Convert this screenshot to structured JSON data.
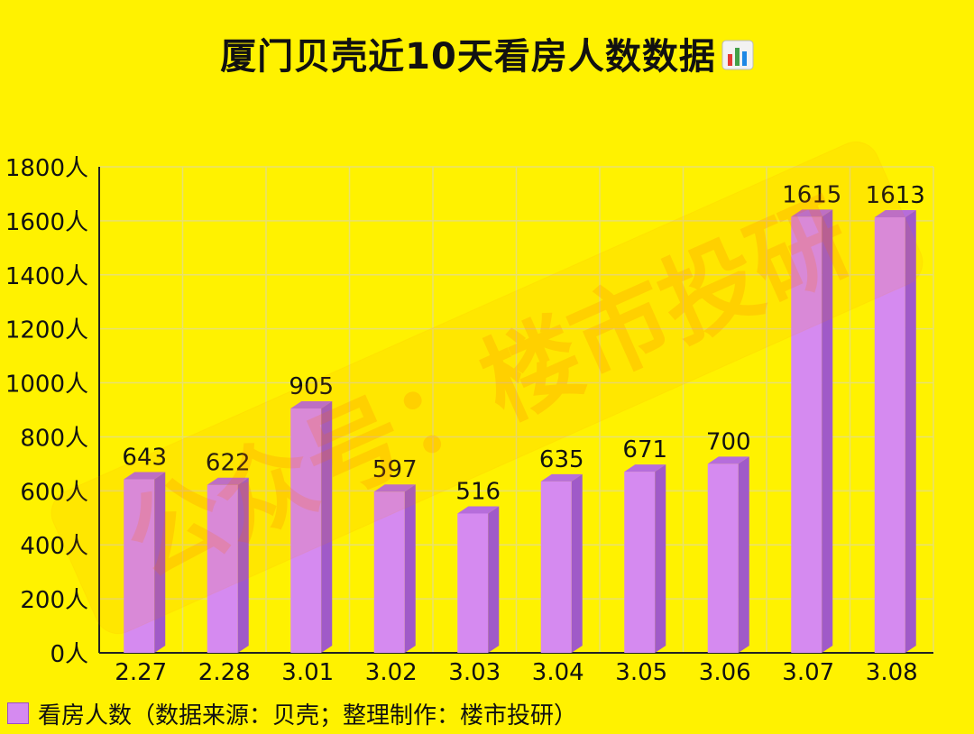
{
  "chart_data": {
    "type": "bar",
    "title": "厦门贝壳近10天看房人数数据",
    "title_icon": "bar-chart-emoji-icon",
    "categories": [
      "2.27",
      "2.28",
      "3.01",
      "3.02",
      "3.03",
      "3.04",
      "3.05",
      "3.06",
      "3.07",
      "3.08"
    ],
    "series": [
      {
        "name": "看房人数（数据来源：贝壳；整理制作：楼市投研）",
        "values": [
          643,
          622,
          905,
          597,
          516,
          635,
          671,
          700,
          1615,
          1613
        ]
      }
    ],
    "ylim": [
      0,
      1800
    ],
    "yticks": [
      "0人",
      "200人",
      "400人",
      "600人",
      "800人",
      "1000人",
      "1200人",
      "1400人",
      "1600人",
      "1800人"
    ],
    "grid": true,
    "legend_position": "bottom-left",
    "bar_style": "3d",
    "colors": {
      "background": "#FFF200",
      "bar_front": "#D58AF0",
      "bar_top": "#B66DDB",
      "bar_side": "#A05AC8",
      "grid": "#E8E070",
      "axis": "#222222"
    },
    "watermark": "公众号：楼市投研"
  }
}
